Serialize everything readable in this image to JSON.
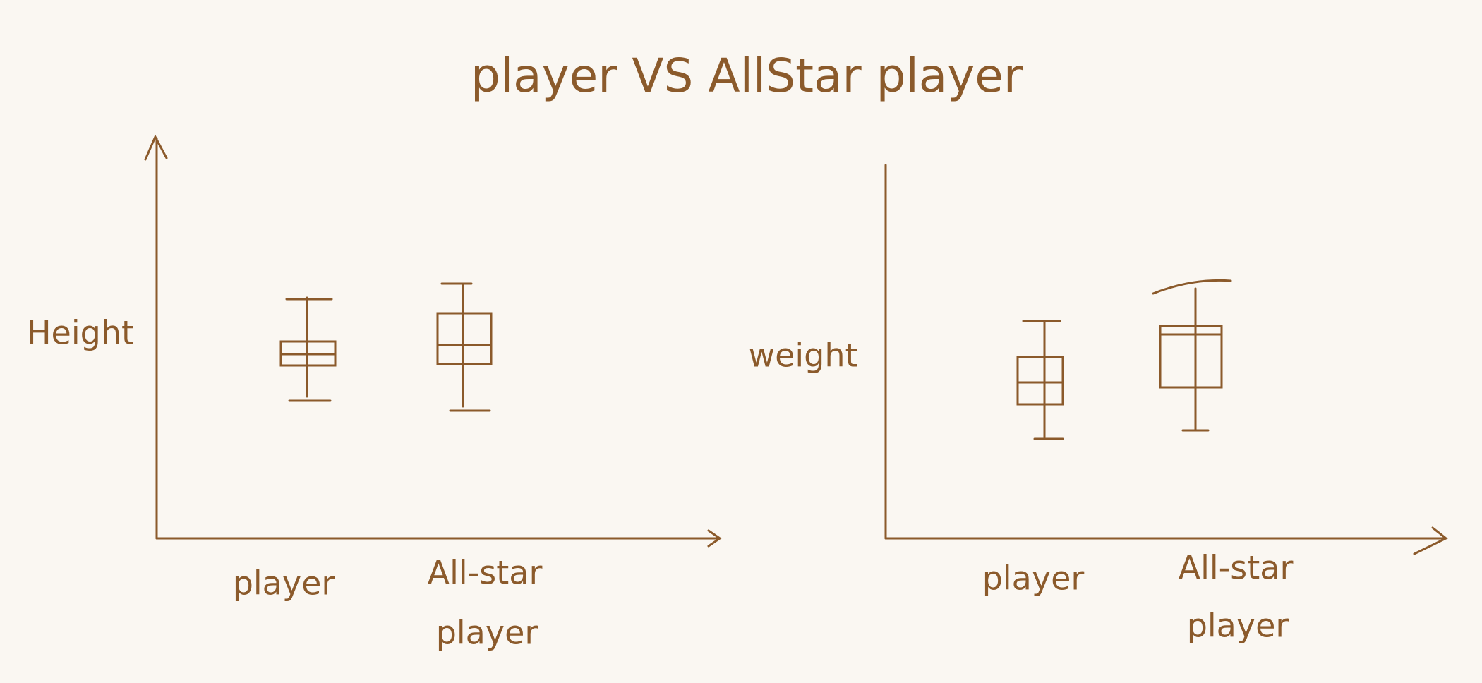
{
  "title": "player VS AllStar player",
  "panels": [
    {
      "y_label": "Height",
      "categories": [
        {
          "lines": [
            "player"
          ]
        },
        {
          "lines": [
            "All-star",
            "player"
          ]
        }
      ]
    },
    {
      "y_label": "weight",
      "categories": [
        {
          "lines": [
            "player"
          ]
        },
        {
          "lines": [
            "All-star",
            "player"
          ]
        }
      ]
    }
  ]
}
